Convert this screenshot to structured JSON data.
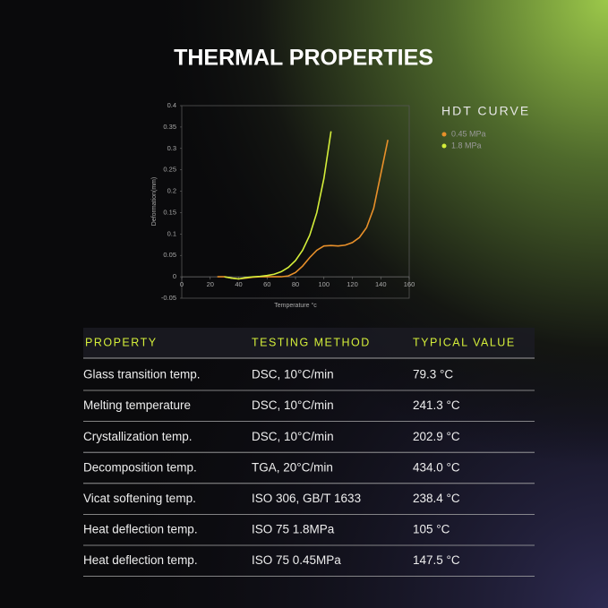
{
  "title": "THERMAL PROPERTIES",
  "chart_data": {
    "type": "line",
    "title": "HDT CURVE",
    "x_label": "Temperature °c",
    "y_label": "Deformation(mm)",
    "x": [
      25,
      30,
      35,
      40,
      45,
      50,
      55,
      60,
      65,
      70,
      75,
      80,
      85,
      90,
      95,
      100,
      105,
      110,
      115,
      120,
      125,
      130,
      135,
      140,
      145
    ],
    "series": [
      {
        "name": "0.45 MPa",
        "color": "#e8902a",
        "values": [
          0,
          0,
          -0.003,
          -0.005,
          -0.003,
          -0.001,
          0,
          0,
          0,
          0,
          0.002,
          0.01,
          0.025,
          0.045,
          0.062,
          0.072,
          0.073,
          0.072,
          0.074,
          0.08,
          0.092,
          0.115,
          0.16,
          0.24,
          0.32
        ]
      },
      {
        "name": "1.8 MPa",
        "color": "#d4ee3a",
        "values": [
          null,
          0,
          -0.003,
          -0.005,
          -0.002,
          0,
          0.001,
          0.003,
          0.006,
          0.012,
          0.022,
          0.038,
          0.062,
          0.097,
          0.15,
          0.23,
          0.34,
          null,
          null,
          null,
          null,
          null,
          null,
          null,
          null
        ]
      }
    ],
    "xlim": [
      0,
      160
    ],
    "xticks": [
      0,
      20,
      40,
      60,
      80,
      100,
      120,
      140,
      160
    ],
    "ylim": [
      -0.05,
      0.4
    ],
    "yticks": [
      0.4,
      0.35,
      0.3,
      0.25,
      0.2,
      0.15,
      0.1,
      0.05,
      0,
      -0.05
    ]
  },
  "table": {
    "header": [
      "PROPERTY",
      "TESTING METHOD",
      "TYPICAL VALUE"
    ],
    "rows": [
      [
        "Glass transition temp.",
        "DSC, 10°C/min",
        "79.3 °C"
      ],
      [
        "Melting temperature",
        "DSC, 10°C/min",
        "241.3 °C"
      ],
      [
        "Crystallization temp.",
        "DSC, 10°C/min",
        "202.9 °C"
      ],
      [
        "Decomposition temp.",
        "TGA, 20°C/min",
        "434.0 °C"
      ],
      [
        "Vicat softening temp.",
        "ISO 306, GB/T 1633",
        "238.4 °C"
      ],
      [
        "Heat deflection temp.",
        "ISO 75 1.8MPa",
        "105 °C"
      ],
      [
        "Heat deflection temp.",
        "ISO 75 0.45MPa",
        "147.5 °C"
      ]
    ]
  }
}
